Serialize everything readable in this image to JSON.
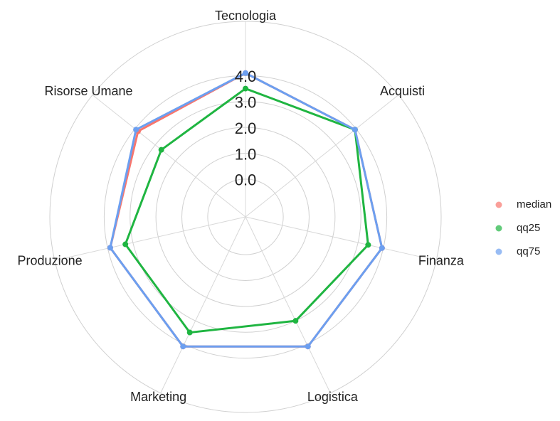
{
  "chart_data": {
    "type": "radar",
    "categories": [
      "Tecnologia",
      "Acquisti",
      "Finanza",
      "Logistica",
      "Marketing",
      "Produzione",
      "Risorse Umane"
    ],
    "series": [
      {
        "name": "median",
        "color": "#f8766d",
        "values": [
          4.1,
          3.95,
          3.95,
          4.1,
          4.1,
          3.9,
          3.85
        ]
      },
      {
        "name": "qq25",
        "color": "#1fb541",
        "values": [
          3.5,
          3.95,
          3.4,
          3.0,
          3.5,
          3.3,
          2.7
        ]
      },
      {
        "name": "qq75",
        "color": "#6c9ff0",
        "values": [
          4.1,
          3.95,
          3.95,
          4.1,
          4.1,
          3.9,
          3.95
        ]
      }
    ],
    "ylim": [
      -1.46,
      6.1
    ],
    "yticks": [
      {
        "value": 0,
        "label": "0.0"
      },
      {
        "value": 1,
        "label": "1.0"
      },
      {
        "value": 2,
        "label": "2.0"
      },
      {
        "value": 3,
        "label": "3.0"
      },
      {
        "value": 4,
        "label": "4.0"
      }
    ],
    "grid": true,
    "legend": "right"
  }
}
